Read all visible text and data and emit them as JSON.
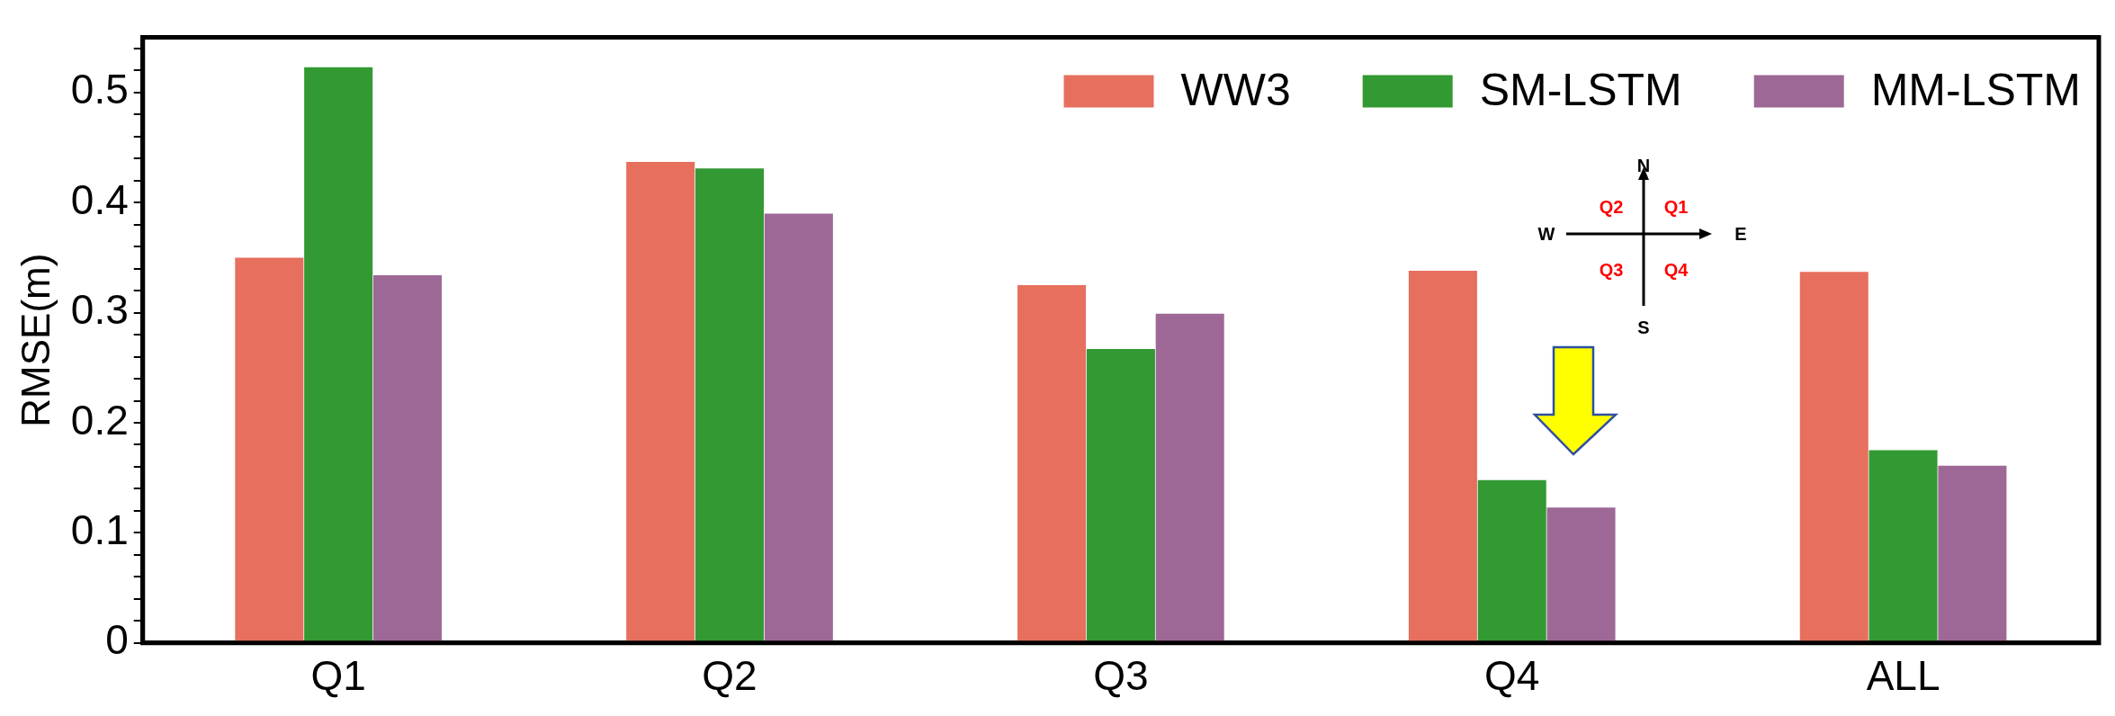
{
  "chart_data": {
    "type": "bar",
    "ylabel": "RMSE(m)",
    "categories": [
      "Q1",
      "Q2",
      "Q3",
      "Q4",
      "ALL"
    ],
    "series": [
      {
        "name": "WW3",
        "color": "#e76f5e",
        "values": [
          0.35,
          0.437,
          0.325,
          0.338,
          0.337
        ]
      },
      {
        "name": "SM-LSTM",
        "color": "#339933",
        "values": [
          0.523,
          0.431,
          0.267,
          0.148,
          0.175
        ]
      },
      {
        "name": "MM-LSTM",
        "color": "#9e6896",
        "values": [
          0.334,
          0.39,
          0.299,
          0.123,
          0.161
        ]
      }
    ],
    "ylim": [
      0,
      0.55
    ],
    "yticks": [
      0,
      {
        "value": 0.02,
        "label": null
      },
      {
        "value": 0.04,
        "label": null
      },
      {
        "value": 0.06,
        "label": null
      },
      {
        "value": 0.08,
        "label": null
      },
      0.1,
      {
        "value": 0.12,
        "label": null
      },
      {
        "value": 0.14,
        "label": null
      },
      {
        "value": 0.16,
        "label": null
      },
      {
        "value": 0.18,
        "label": null
      },
      0.2,
      {
        "value": 0.22,
        "label": null
      },
      {
        "value": 0.24,
        "label": null
      },
      {
        "value": 0.26,
        "label": null
      },
      {
        "value": 0.28,
        "label": null
      },
      0.3,
      {
        "value": 0.32,
        "label": null
      },
      {
        "value": 0.34,
        "label": null
      },
      {
        "value": 0.36,
        "label": null
      },
      {
        "value": 0.38,
        "label": null
      },
      0.4,
      {
        "value": 0.42,
        "label": null
      },
      {
        "value": 0.44,
        "label": null
      },
      {
        "value": 0.46,
        "label": null
      },
      {
        "value": 0.48,
        "label": null
      },
      0.5,
      {
        "value": 0.52,
        "label": null
      },
      {
        "value": 0.54,
        "label": null
      }
    ],
    "grid": false,
    "legend": "top right",
    "annotations": [
      "N",
      "S",
      "W",
      "E",
      "Q2",
      "Q1",
      "Q3",
      "Q4"
    ]
  }
}
